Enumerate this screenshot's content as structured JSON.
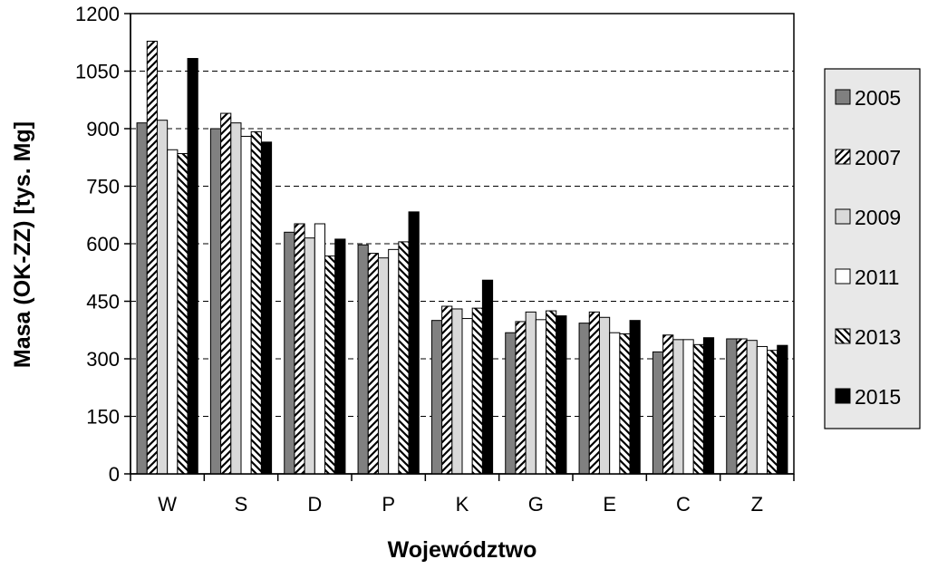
{
  "chart_data": {
    "type": "bar",
    "xlabel": "Województwo",
    "ylabel": "Masa (OK-ZZ) [tys. Mg]",
    "ylim": [
      0,
      1200
    ],
    "yticks": [
      0,
      150,
      300,
      450,
      600,
      750,
      900,
      1050,
      1200
    ],
    "grid": true,
    "legend_position": "right",
    "categories": [
      "W",
      "S",
      "D",
      "P",
      "K",
      "G",
      "E",
      "C",
      "Z"
    ],
    "series": [
      {
        "name": "2005",
        "pattern": "solid-gray",
        "color": "#808080",
        "values": [
          915,
          900,
          630,
          597,
          400,
          368,
          393,
          318,
          352
        ]
      },
      {
        "name": "2007",
        "pattern": "diagonal-hatch",
        "color": "#000000",
        "values": [
          1128,
          940,
          652,
          575,
          437,
          397,
          422,
          362,
          352
        ]
      },
      {
        "name": "2009",
        "pattern": "solid-light-gray",
        "color": "#d9d9d9",
        "values": [
          922,
          915,
          615,
          563,
          430,
          422,
          408,
          350,
          348
        ]
      },
      {
        "name": "2011",
        "pattern": "solid-white",
        "color": "#ffffff",
        "values": [
          845,
          880,
          652,
          585,
          405,
          402,
          368,
          350,
          332
        ]
      },
      {
        "name": "2013",
        "pattern": "reverse-hatch",
        "color": "#000000",
        "values": [
          835,
          892,
          568,
          605,
          432,
          425,
          365,
          337,
          322
        ]
      },
      {
        "name": "2015",
        "pattern": "solid-black",
        "color": "#000000",
        "values": [
          1083,
          865,
          612,
          683,
          505,
          412,
          400,
          355,
          335
        ]
      }
    ]
  }
}
